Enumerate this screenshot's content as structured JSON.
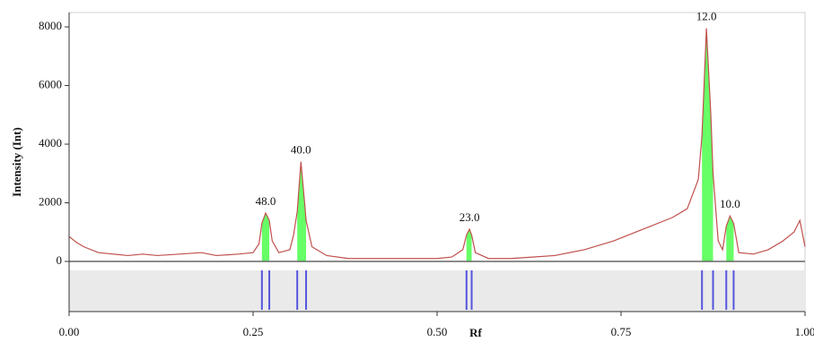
{
  "chart_data": {
    "type": "densitogram",
    "xlabel": "Rf",
    "ylabel": "Intensity (Int)",
    "xlim": [
      0,
      1
    ],
    "ylim": [
      -1710,
      8490
    ],
    "xticks": [
      {
        "value": 0,
        "label": "0.00"
      },
      {
        "value": 0.25,
        "label": "0.25"
      },
      {
        "value": 0.5,
        "label": "0.50"
      },
      {
        "value": 0.75,
        "label": "0.75"
      },
      {
        "value": 1,
        "label": "1.00"
      }
    ],
    "yticks": [
      0,
      2000,
      4000,
      6000,
      8000
    ],
    "line_color": "#c0504d",
    "fill_color": "#66ff66",
    "band_color": "#5555dd",
    "x": [
      0,
      0.01,
      0.02,
      0.04,
      0.06,
      0.08,
      0.1,
      0.12,
      0.15,
      0.18,
      0.2,
      0.23,
      0.25,
      0.258,
      0.262,
      0.267,
      0.272,
      0.276,
      0.285,
      0.3,
      0.305,
      0.31,
      0.315,
      0.32,
      0.322,
      0.33,
      0.35,
      0.38,
      0.42,
      0.46,
      0.5,
      0.52,
      0.535,
      0.54,
      0.544,
      0.547,
      0.552,
      0.57,
      0.6,
      0.63,
      0.66,
      0.7,
      0.74,
      0.78,
      0.82,
      0.84,
      0.855,
      0.86,
      0.866,
      0.872,
      0.875,
      0.882,
      0.888,
      0.893,
      0.898,
      0.903,
      0.91,
      0.93,
      0.95,
      0.97,
      0.985,
      0.993,
      1
    ],
    "values": [
      850,
      650,
      500,
      300,
      250,
      200,
      250,
      200,
      250,
      300,
      200,
      250,
      300,
      600,
      1300,
      1650,
      1400,
      700,
      300,
      400,
      900,
      1700,
      3400,
      2000,
      1400,
      500,
      200,
      100,
      100,
      100,
      100,
      150,
      400,
      900,
      1100,
      900,
      300,
      100,
      100,
      150,
      200,
      400,
      700,
      1100,
      1500,
      1800,
      2800,
      4300,
      7950,
      5000,
      3000,
      700,
      400,
      1200,
      1550,
      1300,
      300,
      250,
      400,
      700,
      1000,
      1400,
      500
    ],
    "peaks": [
      {
        "start": 0.262,
        "end": 0.272,
        "x": 0.267,
        "y": 1650,
        "label": "48.0"
      },
      {
        "start": 0.31,
        "end": 0.322,
        "x": 0.315,
        "y": 3400,
        "label": "40.0"
      },
      {
        "start": 0.54,
        "end": 0.547,
        "x": 0.544,
        "y": 1100,
        "label": "23.0"
      },
      {
        "start": 0.86,
        "end": 0.875,
        "x": 0.866,
        "y": 7950,
        "label": "12.0"
      },
      {
        "start": 0.893,
        "end": 0.903,
        "x": 0.898,
        "y": 1550,
        "label": "10.0"
      }
    ]
  }
}
